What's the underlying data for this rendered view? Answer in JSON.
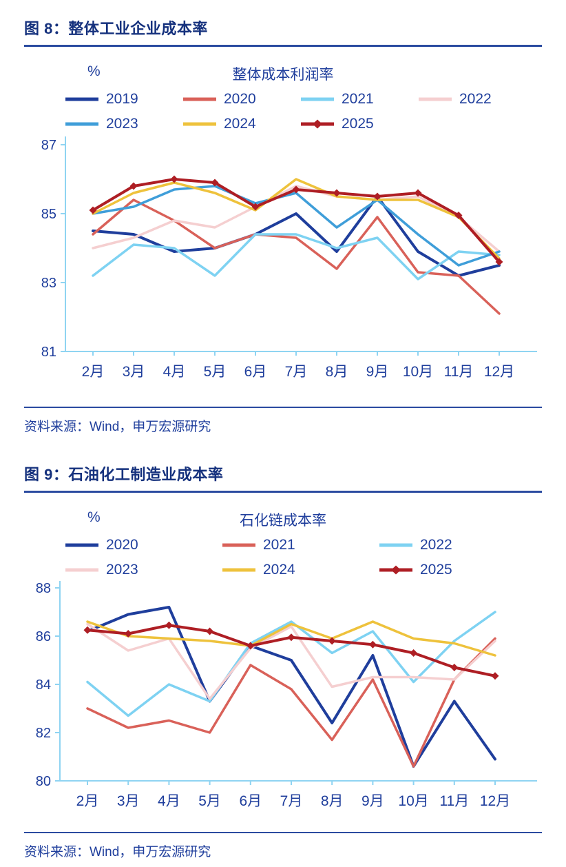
{
  "colors": {
    "text": "#1f3e9c",
    "heading": "#15317d",
    "rule": "#2b4ba0",
    "axis": "#8fd4f2"
  },
  "figures": [
    {
      "heading": "图 8：整体工业企业成本率",
      "source": "资料来源：Wind，申万宏源研究"
    },
    {
      "heading": "图 9：石油化工制造业成本率",
      "source": "资料来源：Wind，申万宏源研究"
    }
  ],
  "chart_data": [
    {
      "type": "line",
      "title": "整体成本利润率",
      "unit": "%",
      "xlabel": "",
      "ylabel": "%",
      "categories": [
        "2月",
        "3月",
        "4月",
        "5月",
        "6月",
        "7月",
        "8月",
        "9月",
        "10月",
        "11月",
        "12月"
      ],
      "ylim": [
        81,
        87
      ],
      "yticks": [
        87,
        85,
        83,
        81
      ],
      "grid": false,
      "legend_position": "top",
      "legend_rows": [
        [
          "2019",
          "2020",
          "2021",
          "2022"
        ],
        [
          "2023",
          "2024",
          "2025"
        ]
      ],
      "series": [
        {
          "name": "2019",
          "color": "#1f3e9c",
          "width": 4,
          "values": [
            84.5,
            84.4,
            83.9,
            84.0,
            84.4,
            85.0,
            83.9,
            85.5,
            83.9,
            83.2,
            83.5
          ]
        },
        {
          "name": "2020",
          "color": "#d96159",
          "width": 3.5,
          "values": [
            84.4,
            85.4,
            84.8,
            84.0,
            84.4,
            84.3,
            83.4,
            84.9,
            83.3,
            83.2,
            82.1
          ]
        },
        {
          "name": "2021",
          "color": "#7ed2f2",
          "width": 3.5,
          "values": [
            83.2,
            84.1,
            84.0,
            83.2,
            84.4,
            84.4,
            84.0,
            84.3,
            83.1,
            83.9,
            83.8
          ]
        },
        {
          "name": "2022",
          "color": "#f5cfd0",
          "width": 3.5,
          "values": [
            84.0,
            84.3,
            84.8,
            84.6,
            85.2,
            85.8,
            85.5,
            85.4,
            85.5,
            84.9,
            83.9
          ]
        },
        {
          "name": "2023",
          "color": "#3f9ed9",
          "width": 3.5,
          "values": [
            85.0,
            85.2,
            85.7,
            85.8,
            85.3,
            85.6,
            84.6,
            85.4,
            84.4,
            83.5,
            83.9
          ]
        },
        {
          "name": "2024",
          "color": "#eec23c",
          "width": 3.5,
          "values": [
            85.0,
            85.6,
            85.9,
            85.6,
            85.1,
            86.0,
            85.5,
            85.4,
            85.4,
            84.9,
            83.7
          ]
        },
        {
          "name": "2025",
          "color": "#ae1e24",
          "width": 4,
          "marker": "diamond",
          "values": [
            85.1,
            85.8,
            86.0,
            85.9,
            85.2,
            85.7,
            85.6,
            85.5,
            85.6,
            84.95,
            83.6
          ]
        }
      ]
    },
    {
      "type": "line",
      "title": "石化链成本率",
      "unit": "%",
      "xlabel": "",
      "ylabel": "%",
      "categories": [
        "2月",
        "3月",
        "4月",
        "5月",
        "6月",
        "7月",
        "8月",
        "9月",
        "10月",
        "11月",
        "12月"
      ],
      "ylim": [
        80,
        88
      ],
      "yticks": [
        88,
        86,
        84,
        82,
        80
      ],
      "grid": false,
      "legend_position": "top",
      "legend_rows": [
        [
          "2020",
          "2021",
          "2022"
        ],
        [
          "2023",
          "2024",
          "2025"
        ]
      ],
      "series": [
        {
          "name": "2020",
          "color": "#1f3e9c",
          "width": 4,
          "values": [
            86.2,
            86.9,
            87.2,
            83.3,
            85.6,
            85.0,
            82.4,
            85.2,
            80.6,
            83.3,
            80.9
          ]
        },
        {
          "name": "2021",
          "color": "#d96159",
          "width": 3.5,
          "values": [
            83.0,
            82.2,
            82.5,
            82.0,
            84.8,
            83.8,
            81.7,
            84.2,
            80.6,
            84.2,
            85.9
          ]
        },
        {
          "name": "2022",
          "color": "#7ed2f2",
          "width": 3.5,
          "values": [
            84.1,
            82.7,
            84.0,
            83.3,
            85.7,
            86.6,
            85.3,
            86.2,
            84.1,
            85.8,
            87.0
          ]
        },
        {
          "name": "2023",
          "color": "#f5cfd0",
          "width": 3.5,
          "values": [
            86.5,
            85.4,
            85.9,
            83.4,
            85.5,
            86.4,
            83.9,
            84.3,
            84.3,
            84.2,
            85.8
          ]
        },
        {
          "name": "2024",
          "color": "#eec23c",
          "width": 3.5,
          "values": [
            86.6,
            86.0,
            85.9,
            85.8,
            85.6,
            86.5,
            85.9,
            86.6,
            85.9,
            85.7,
            85.2
          ]
        },
        {
          "name": "2025",
          "color": "#ae1e24",
          "width": 4,
          "marker": "diamond",
          "values": [
            86.25,
            86.1,
            86.45,
            86.2,
            85.6,
            85.95,
            85.8,
            85.65,
            85.3,
            84.7,
            84.35
          ]
        }
      ]
    }
  ]
}
